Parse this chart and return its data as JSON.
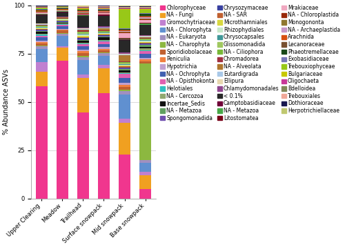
{
  "samples": [
    "Upper Clearing",
    "Meadow",
    "Trailhead",
    "Surface snowpack",
    "Mid snowpack",
    "Base snowpack"
  ],
  "categories": [
    "Chlorophyceae",
    "NA - Fungi",
    "Gromochytriaceae",
    "NA - Chlorophyta",
    "NA - Eukaryota",
    "NA - Charophyta",
    "Sporidiobolaceae",
    "Peniculia",
    "Hypotrichia",
    "NA - Ochrophyta",
    "NA - Opisthokonta",
    "Helotiales",
    "NA - Cercozoa",
    "Incertae_Sedis",
    "NA - Metazoa",
    "Spongomonadida",
    "Chrysozymaceae",
    "NA - SAR",
    "Microthamniales",
    "Rhizophydiales",
    "Chrysocapsales",
    "Glissomonadida",
    "NA - Ciliophora",
    "Chromadorea",
    "NA - Alveolata",
    "Eutardigrada",
    "Ellipura",
    "Chlamydomonadales",
    "< 0.1%",
    "Camptobasidiaceae",
    "NA - Metazoa (col2)",
    "Litostomatea",
    "Mrakiaceae",
    "NA - Chloroplastida",
    "Monogononta",
    "NA - Archaeplastida",
    "Arachnida",
    "Lecanoraceae",
    "Phaeotremellaceae",
    "Exobasidiaceae",
    "Trebouxiophyceae",
    "Bulgariaceae",
    "Oligochaeta",
    "Bdelloidea",
    "Trebouxiales",
    "Dothioraceae",
    "Herpotrichiellaceae"
  ],
  "legend_labels": [
    "Chlorophyceae",
    "NA - Fungi",
    "Gromochytriaceae",
    "NA - Chlorophyta",
    "NA - Eukaryota",
    "NA - Charophyta",
    "Sporidiobolaceae",
    "Peniculia",
    "Hypotrichia",
    "NA - Ochrophyta",
    "NA - Opisthokonta",
    "Helotiales",
    "NA - Cercozoa",
    "Incertae_Sedis",
    "NA - Metazoa",
    "Spongomonadida",
    "Chrysozymaceae",
    "NA - SAR",
    "Microthamniales",
    "Rhizophydiales",
    "Chrysocapsales",
    "Glissomonadida",
    "NA - Ciliophora",
    "Chromadorea",
    "NA - Alveolata",
    "Eutardigrada",
    "Ellipura",
    "Chlamydomonadales",
    "< 0.1%",
    "Camptobasidiaceae",
    "NA - Metazoa",
    "Litostomatea",
    "Mrakiaceae",
    "NA - Chloroplastida",
    "Monogononta",
    "NA - Archaeplastida",
    "Arachnida",
    "Lecanoraceae",
    "Phaeotremellaceae",
    "Exobasidiaceae",
    "Trebouxiophyceae",
    "Bulgariaceae",
    "Oligochaeta",
    "Bdelloidea",
    "Trebouxiales",
    "Dothioraceae",
    "Herpotrichiellaceae"
  ],
  "colors": [
    "#F0368E",
    "#F0A020",
    "#C080D0",
    "#6090D0",
    "#A090C0",
    "#8CB840",
    "#C06030",
    "#F08040",
    "#C0A0D0",
    "#4060B0",
    "#E060B0",
    "#30C0C0",
    "#90A870",
    "#101010",
    "#60A060",
    "#7050B0",
    "#3840A0",
    "#C06030",
    "#D8D840",
    "#C8E8C8",
    "#409898",
    "#A0C860",
    "#78B838",
    "#A03040",
    "#B07830",
    "#A8C8E8",
    "#E8D8B0",
    "#904890",
    "#282828",
    "#700038",
    "#48A848",
    "#780018",
    "#F0A8C0",
    "#982808",
    "#907830",
    "#C898C8",
    "#D85010",
    "#785030",
    "#184818",
    "#7878B8",
    "#98C818",
    "#C8C800",
    "#C83898",
    "#808858",
    "#F0A898",
    "#181850",
    "#C0C870"
  ],
  "data": {
    "Upper Clearing": [
      57.0,
      7.5,
      5.0,
      6.5,
      1.5,
      0.3,
      1.0,
      0.8,
      0.8,
      1.5,
      1.0,
      0.5,
      0.5,
      0.8,
      0.5,
      0.3,
      0.4,
      0.3,
      0.3,
      0.5,
      0.3,
      0.3,
      0.3,
      0.3,
      0.3,
      0.2,
      0.2,
      0.3,
      4.0,
      0.3,
      0.3,
      0.2,
      0.8,
      0.3,
      0.2,
      0.2,
      0.2,
      0.2,
      0.3,
      0.3,
      0.5,
      0.3,
      0.2,
      0.2,
      0.2,
      0.2,
      0.2
    ],
    "Meadow": [
      73.0,
      7.0,
      0.8,
      5.5,
      1.0,
      0.3,
      1.5,
      0.4,
      0.4,
      1.5,
      0.8,
      0.3,
      0.3,
      0.5,
      0.3,
      0.3,
      0.3,
      0.2,
      0.2,
      0.3,
      0.2,
      0.2,
      0.2,
      0.2,
      0.2,
      0.1,
      0.1,
      0.2,
      2.5,
      0.2,
      0.2,
      0.1,
      0.3,
      0.2,
      0.2,
      0.2,
      0.2,
      0.2,
      0.2,
      0.2,
      0.2,
      0.2,
      0.2,
      0.2,
      0.2,
      0.2,
      0.2
    ],
    "Trailhead": [
      44.0,
      18.0,
      1.5,
      7.5,
      1.5,
      0.5,
      1.5,
      1.0,
      1.0,
      1.5,
      1.0,
      0.5,
      0.5,
      0.8,
      0.5,
      0.5,
      0.5,
      0.5,
      0.5,
      0.8,
      0.5,
      0.5,
      0.5,
      0.5,
      0.5,
      0.3,
      0.3,
      0.3,
      6.0,
      0.3,
      0.3,
      0.3,
      0.5,
      0.3,
      0.3,
      0.3,
      0.3,
      0.3,
      0.3,
      0.3,
      0.3,
      0.3,
      0.3,
      0.3,
      0.3,
      0.3,
      0.3
    ],
    "Surface snowpack": [
      55.0,
      13.0,
      2.0,
      4.5,
      1.5,
      0.3,
      1.0,
      1.0,
      0.8,
      1.5,
      1.5,
      0.4,
      0.4,
      1.5,
      0.4,
      0.3,
      0.4,
      0.3,
      0.3,
      0.5,
      0.3,
      0.3,
      0.3,
      0.4,
      1.0,
      0.3,
      0.3,
      0.4,
      5.5,
      0.3,
      0.3,
      0.3,
      0.5,
      0.3,
      0.3,
      0.3,
      0.3,
      0.3,
      0.3,
      0.3,
      0.3,
      0.3,
      0.3,
      0.3,
      0.3,
      0.3,
      0.3
    ],
    "Mid snowpack": [
      18.0,
      13.0,
      1.5,
      10.0,
      1.5,
      0.5,
      1.0,
      1.0,
      0.8,
      2.0,
      1.5,
      0.4,
      0.4,
      0.8,
      0.4,
      0.4,
      0.4,
      0.3,
      0.3,
      0.5,
      0.3,
      0.3,
      0.3,
      0.4,
      2.5,
      0.3,
      0.3,
      0.5,
      5.0,
      0.3,
      0.3,
      0.3,
      2.0,
      0.3,
      0.3,
      0.3,
      0.3,
      0.3,
      0.3,
      0.3,
      7.5,
      0.3,
      0.3,
      0.3,
      0.3,
      0.3,
      0.3
    ],
    "Base snowpack": [
      4.5,
      7.0,
      1.5,
      4.5,
      1.5,
      47.0,
      1.0,
      1.0,
      0.8,
      2.0,
      1.5,
      0.4,
      0.8,
      0.8,
      0.8,
      0.4,
      0.4,
      0.3,
      0.4,
      0.5,
      0.4,
      0.4,
      0.4,
      0.4,
      0.4,
      0.2,
      0.2,
      0.4,
      5.0,
      0.3,
      0.4,
      0.3,
      1.5,
      0.4,
      0.4,
      0.4,
      0.4,
      0.4,
      1.0,
      0.4,
      1.5,
      0.4,
      0.4,
      0.4,
      0.4,
      0.3,
      0.4
    ]
  },
  "ylabel": "% Abundance ASVs",
  "ylim": [
    0,
    100
  ],
  "background_color": "#ffffff"
}
